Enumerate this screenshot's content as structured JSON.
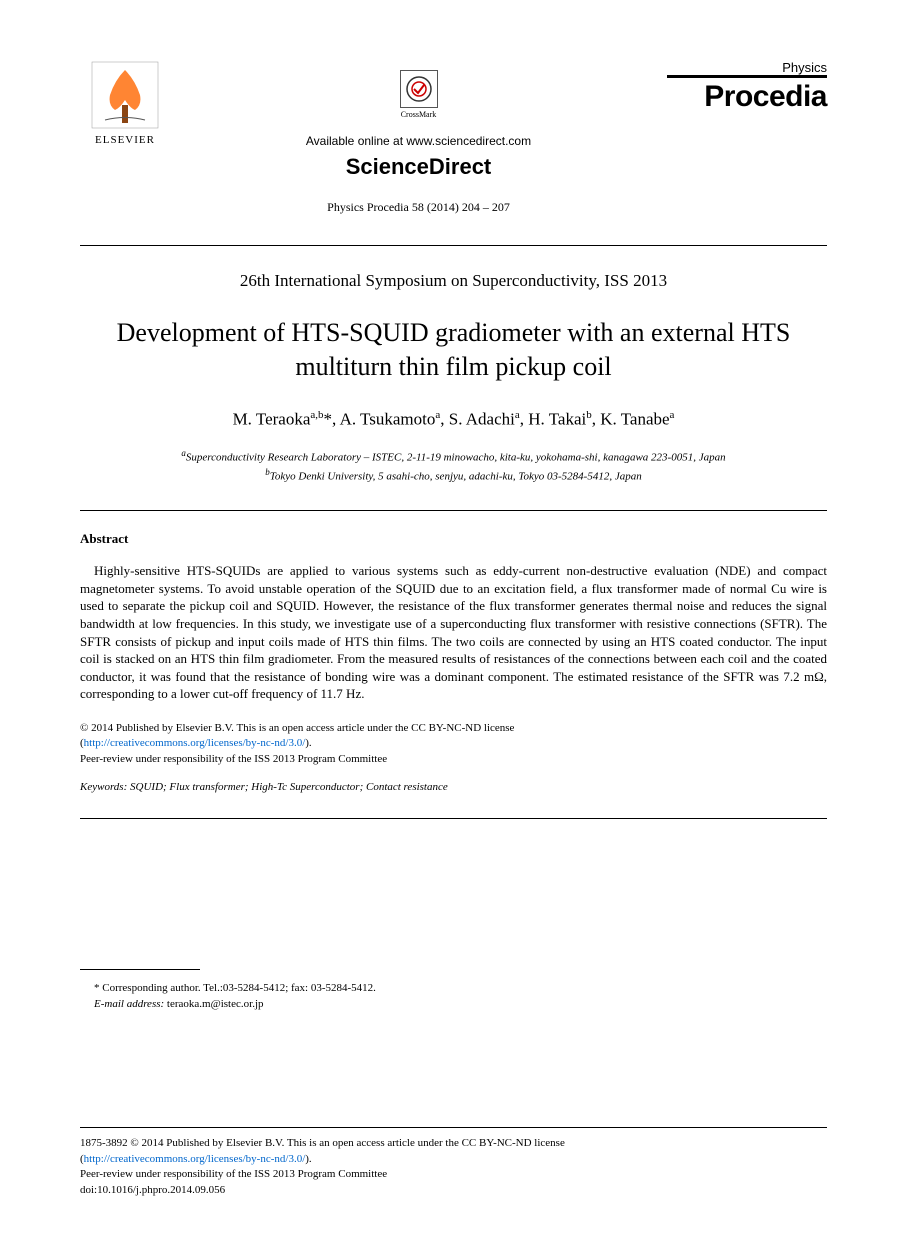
{
  "header": {
    "elsevier_label": "ELSEVIER",
    "crossmark_label": "CrossMark",
    "available_text": "Available online at www.sciencedirect.com",
    "sciencedirect": "ScienceDirect",
    "citation": "Physics Procedia 58 (2014) 204 – 207",
    "journal_category": "Physics",
    "journal_name": "Procedia"
  },
  "conference": "26th International Symposium on Superconductivity, ISS 2013",
  "title": "Development of HTS-SQUID gradiometer with an external HTS multiturn thin film pickup coil",
  "authors_html": "M. Teraoka<sup>a,b</sup>*, A. Tsukamoto<sup>a</sup>, S. Adachi<sup>a</sup>, H. Takai<sup>b</sup>, K. Tanabe<sup>a</sup>",
  "affiliations": {
    "a": "Superconductivity Research Laboratory – ISTEC, 2-11-19 minowacho, kita-ku, yokohama-shi, kanagawa 223-0051, Japan",
    "b": "Tokyo Denki University, 5 asahi-cho, senjyu, adachi-ku, Tokyo 03-5284-5412, Japan"
  },
  "abstract_heading": "Abstract",
  "abstract_text": "Highly-sensitive HTS-SQUIDs are applied to various systems such as eddy-current non-destructive evaluation (NDE) and compact magnetometer systems. To avoid unstable operation of the SQUID due to an excitation field, a flux transformer made of normal Cu wire is used to separate the pickup coil and SQUID. However, the resistance of the flux transformer generates thermal noise and reduces the signal bandwidth at low frequencies. In this study, we investigate use of a superconducting flux transformer with resistive connections (SFTR). The SFTR consists of pickup and input coils made of HTS thin films. The two coils are connected by using an HTS coated conductor. The input coil is stacked on an HTS thin film gradiometer. From the measured results of resistances of the connections between each coil and the coated conductor, it was found that the resistance of bonding wire was a dominant component. The estimated resistance of the SFTR was 7.2 mΩ, corresponding to a lower cut-off frequency of 11.7 Hz.",
  "copyright": {
    "line1": "© 2014 Published by Elsevier B.V. This is an open access article under the CC BY-NC-ND license",
    "license_url": "http://creativecommons.org/licenses/by-nc-nd/3.0/",
    "line2": "Peer-review under responsibility of the ISS 2013 Program Committee"
  },
  "keywords": {
    "label": "Keywords:",
    "text": " SQUID; Flux transformer; High-Tc Superconductor; Contact  resistance"
  },
  "footnote": {
    "corresponding": "* Corresponding author. Tel.:03-5284-5412; fax: 03-5284-5412.",
    "email_label": "E-mail address:",
    "email": " teraoka.m@istec.or.jp"
  },
  "bottom": {
    "issn_line": "1875-3892 © 2014 Published by Elsevier B.V. This is an open access article under the CC BY-NC-ND license",
    "license_url": "http://creativecommons.org/licenses/by-nc-nd/3.0/",
    "peer_review": "Peer-review under responsibility of the ISS 2013 Program Committee",
    "doi": "doi:10.1016/j.phpro.2014.09.056"
  },
  "colors": {
    "text": "#000000",
    "link": "#0066cc",
    "background": "#ffffff",
    "elsevier_orange": "#ff6600"
  }
}
